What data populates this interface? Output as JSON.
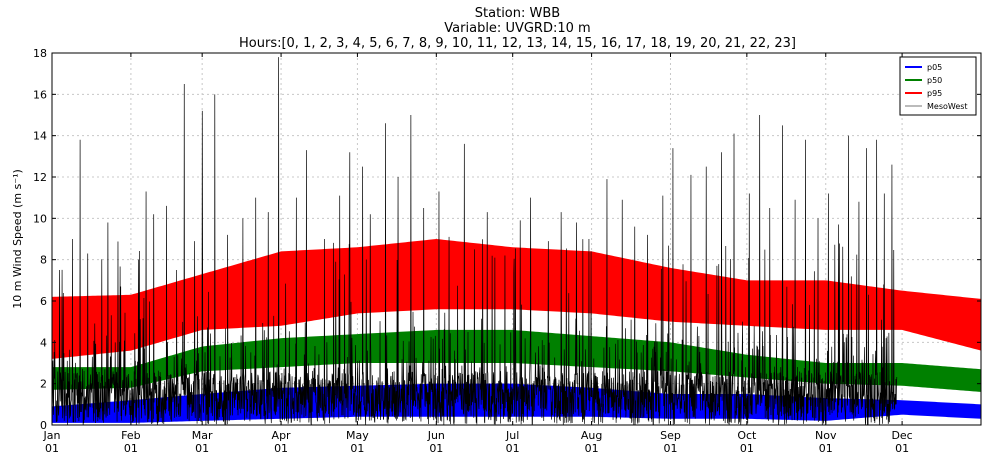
{
  "chart_data": {
    "type": "line",
    "title_lines": [
      "Station: WBB",
      "Variable: UVGRD:10 m",
      "Hours:[0, 1, 2, 3, 4, 5, 6, 7, 8, 9, 10, 11, 12, 13, 14, 15, 16, 17, 18, 19, 20, 21, 22, 23]"
    ],
    "ylabel": "10 m Wind Speed (m s⁻¹)",
    "xlabel": "",
    "ylim": [
      0,
      18
    ],
    "yticks": [
      0,
      2,
      4,
      6,
      8,
      10,
      12,
      14,
      16,
      18
    ],
    "xlim_days": [
      0,
      365
    ],
    "x_ticks": [
      {
        "day": 0,
        "month": "Jan",
        "daylabel": "01"
      },
      {
        "day": 31,
        "month": "Feb",
        "daylabel": "01"
      },
      {
        "day": 59,
        "month": "Mar",
        "daylabel": "01"
      },
      {
        "day": 90,
        "month": "Apr",
        "daylabel": "01"
      },
      {
        "day": 120,
        "month": "May",
        "daylabel": "01"
      },
      {
        "day": 151,
        "month": "Jun",
        "daylabel": "01"
      },
      {
        "day": 181,
        "month": "Jul",
        "daylabel": "01"
      },
      {
        "day": 212,
        "month": "Aug",
        "daylabel": "01"
      },
      {
        "day": 243,
        "month": "Sep",
        "daylabel": "01"
      },
      {
        "day": 273,
        "month": "Oct",
        "daylabel": "01"
      },
      {
        "day": 304,
        "month": "Nov",
        "daylabel": "01"
      },
      {
        "day": 334,
        "month": "Dec",
        "daylabel": "01"
      }
    ],
    "grid": true,
    "legend_position": "top-right",
    "series": [
      {
        "name": "p05",
        "color": "#0000ff",
        "band_days": [
          0,
          31,
          59,
          90,
          120,
          151,
          181,
          212,
          243,
          273,
          304,
          334,
          365
        ],
        "low": [
          0.1,
          0.1,
          0.2,
          0.3,
          0.4,
          0.4,
          0.4,
          0.4,
          0.3,
          0.3,
          0.2,
          0.5,
          0.3
        ],
        "high": [
          0.9,
          1.2,
          1.5,
          1.8,
          1.9,
          2.0,
          2.0,
          1.8,
          1.5,
          1.5,
          1.3,
          1.2,
          1.0
        ]
      },
      {
        "name": "p50",
        "color": "#008000",
        "band_days": [
          0,
          31,
          59,
          90,
          120,
          151,
          181,
          212,
          243,
          273,
          304,
          334,
          365
        ],
        "low": [
          1.7,
          1.8,
          2.6,
          2.8,
          3.0,
          3.0,
          3.0,
          2.8,
          2.6,
          2.3,
          2.0,
          1.9,
          1.6
        ],
        "high": [
          2.8,
          2.8,
          3.8,
          4.2,
          4.4,
          4.6,
          4.6,
          4.3,
          4.0,
          3.4,
          3.0,
          3.0,
          2.7
        ]
      },
      {
        "name": "p95",
        "color": "#ff0000",
        "band_days": [
          0,
          31,
          59,
          90,
          120,
          151,
          181,
          212,
          243,
          273,
          304,
          334,
          365
        ],
        "low": [
          3.2,
          3.6,
          4.6,
          4.8,
          5.4,
          5.6,
          5.6,
          5.4,
          5.0,
          4.8,
          4.6,
          4.6,
          3.6
        ],
        "high": [
          6.2,
          6.3,
          7.3,
          8.4,
          8.6,
          9.0,
          8.6,
          8.4,
          7.6,
          7.0,
          7.0,
          6.5,
          6.1
        ]
      },
      {
        "name": "MesoWest",
        "color": "#000000",
        "legend_color": "#bbbbbb",
        "end_day": 332,
        "peaks": [
          {
            "day": 3,
            "value": 7.5
          },
          {
            "day": 8,
            "value": 9.0
          },
          {
            "day": 11,
            "value": 13.8
          },
          {
            "day": 14,
            "value": 8.3
          },
          {
            "day": 22,
            "value": 9.8
          },
          {
            "day": 27,
            "value": 6.7
          },
          {
            "day": 34,
            "value": 8.0
          },
          {
            "day": 37,
            "value": 11.3
          },
          {
            "day": 40,
            "value": 10.2
          },
          {
            "day": 45,
            "value": 10.6
          },
          {
            "day": 49,
            "value": 7.5
          },
          {
            "day": 52,
            "value": 16.5
          },
          {
            "day": 56,
            "value": 8.9
          },
          {
            "day": 59,
            "value": 15.2
          },
          {
            "day": 64,
            "value": 16.0
          },
          {
            "day": 69,
            "value": 9.2
          },
          {
            "day": 75,
            "value": 10.0
          },
          {
            "day": 80,
            "value": 11.0
          },
          {
            "day": 85,
            "value": 10.3
          },
          {
            "day": 89,
            "value": 17.8
          },
          {
            "day": 96,
            "value": 11.0
          },
          {
            "day": 100,
            "value": 13.3
          },
          {
            "day": 107,
            "value": 9.0
          },
          {
            "day": 113,
            "value": 11.1
          },
          {
            "day": 117,
            "value": 13.2
          },
          {
            "day": 122,
            "value": 12.5
          },
          {
            "day": 125,
            "value": 10.2
          },
          {
            "day": 131,
            "value": 14.6
          },
          {
            "day": 136,
            "value": 12.0
          },
          {
            "day": 141,
            "value": 15.0
          },
          {
            "day": 146,
            "value": 10.5
          },
          {
            "day": 152,
            "value": 11.3
          },
          {
            "day": 156,
            "value": 9.1
          },
          {
            "day": 162,
            "value": 13.6
          },
          {
            "day": 166,
            "value": 8.5
          },
          {
            "day": 171,
            "value": 10.3
          },
          {
            "day": 178,
            "value": 8.2
          },
          {
            "day": 184,
            "value": 9.9
          },
          {
            "day": 188,
            "value": 11.0
          },
          {
            "day": 195,
            "value": 8.9
          },
          {
            "day": 200,
            "value": 10.3
          },
          {
            "day": 206,
            "value": 9.8
          },
          {
            "day": 211,
            "value": 9.0
          },
          {
            "day": 218,
            "value": 11.9
          },
          {
            "day": 224,
            "value": 10.9
          },
          {
            "day": 229,
            "value": 9.6
          },
          {
            "day": 234,
            "value": 9.2
          },
          {
            "day": 240,
            "value": 11.1
          },
          {
            "day": 244,
            "value": 13.4
          },
          {
            "day": 251,
            "value": 12.1
          },
          {
            "day": 257,
            "value": 12.5
          },
          {
            "day": 263,
            "value": 13.2
          },
          {
            "day": 268,
            "value": 14.1
          },
          {
            "day": 274,
            "value": 11.2
          },
          {
            "day": 278,
            "value": 15.0
          },
          {
            "day": 282,
            "value": 10.5
          },
          {
            "day": 287,
            "value": 14.5
          },
          {
            "day": 292,
            "value": 10.9
          },
          {
            "day": 296,
            "value": 13.8
          },
          {
            "day": 301,
            "value": 10.0
          },
          {
            "day": 305,
            "value": 11.2
          },
          {
            "day": 309,
            "value": 9.7
          },
          {
            "day": 313,
            "value": 14.0
          },
          {
            "day": 317,
            "value": 10.8
          },
          {
            "day": 320,
            "value": 13.4
          },
          {
            "day": 324,
            "value": 13.8
          },
          {
            "day": 327,
            "value": 11.2
          },
          {
            "day": 330,
            "value": 12.6
          }
        ]
      }
    ]
  }
}
